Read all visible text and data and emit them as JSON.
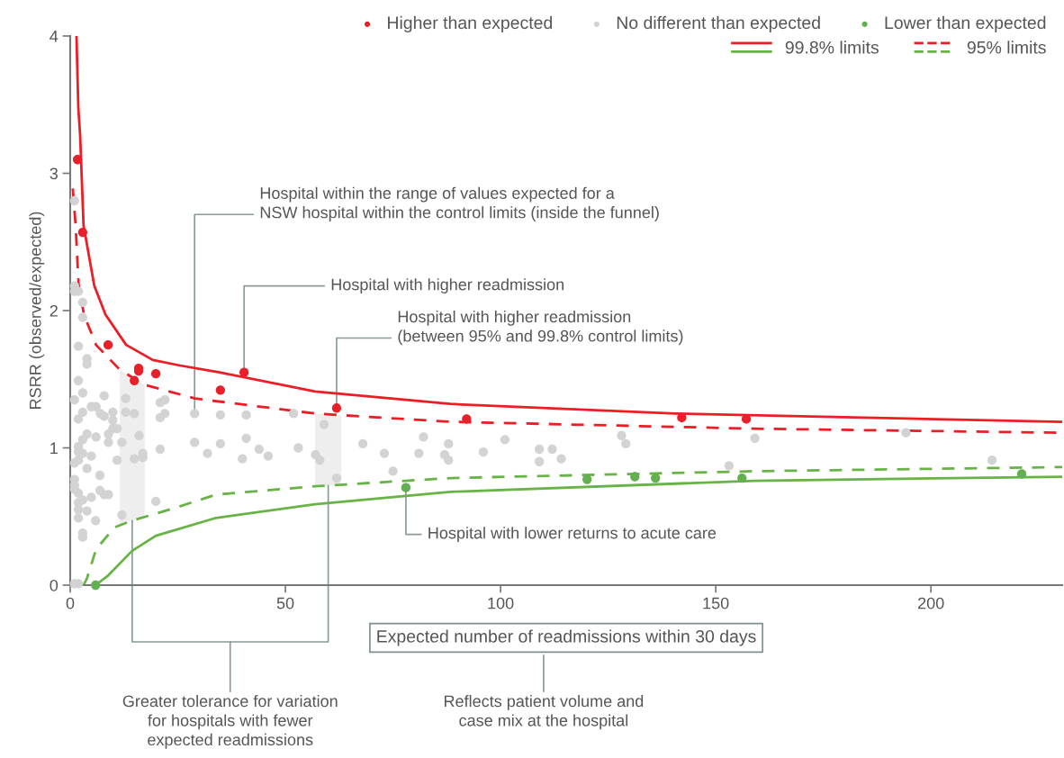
{
  "chart_data": {
    "type": "scatter",
    "xlabel": "Expected number of readmissions within 30 days",
    "ylabel": "RSRR (observed/expected)",
    "xlim": [
      0,
      230.5
    ],
    "xticks": [
      0,
      50,
      100,
      150,
      200
    ],
    "ylim": [
      0,
      4
    ],
    "yticks": [
      0,
      1,
      2,
      3,
      4
    ],
    "grid": false,
    "legend": "top right",
    "marker": "circle",
    "series": [
      {
        "name": "Higher than expected",
        "color": "#e8202a",
        "x": [
          1.7,
          2.9,
          8.8,
          14.9,
          15.9,
          15.9,
          19.9,
          34.9,
          40.4,
          61.9,
          92.1,
          142.1,
          157.1
        ],
        "values": [
          3.1,
          2.57,
          1.75,
          1.49,
          1.58,
          1.56,
          1.54,
          1.42,
          1.55,
          1.29,
          1.21,
          1.22,
          1.21
        ]
      },
      {
        "name": "No different than expected",
        "color": "#d3d3d3",
        "x": [
          1.0,
          1.0,
          1.0,
          1.9,
          2.9,
          2.9,
          1.9,
          3.9,
          3.9,
          1.9,
          2.9,
          1.0,
          7.9,
          12.9,
          1.9,
          2.9,
          4.9,
          6.0,
          7.0,
          7.9,
          9.9,
          9.9,
          12.9,
          14.9,
          20.9,
          22.0,
          20.9,
          22.0,
          9.9,
          10.9,
          3.9,
          2.9,
          6.0,
          8.9,
          8.9,
          12.0,
          16.0,
          1.9,
          1.9,
          2.9,
          1.0,
          1.9,
          4.9,
          3.9,
          10.9,
          14.9,
          16.9,
          16.9,
          20.9,
          6.9,
          1.0,
          1.0,
          1.0,
          1.9,
          2.9,
          1.9,
          1.9,
          1.9,
          4.9,
          6.9,
          7.9,
          8.9,
          3.9,
          5.9,
          12.0,
          19.9,
          2.9,
          2.9,
          1.0,
          1.9,
          28.9,
          28.9,
          31.9,
          34.9,
          40.9,
          51.9,
          59.0,
          34.9,
          40.9,
          40.0,
          43.9,
          46.0,
          53.0,
          57.0,
          58.0,
          61.9,
          68.0,
          73.0,
          75.0,
          81.0,
          82.1,
          87.0,
          87.9,
          87.9,
          96.0,
          101.0,
          109.0,
          112.0,
          109.0,
          114.1,
          128.1,
          129.1,
          153.1,
          159.1,
          194.2,
          214.2
        ],
        "values": [
          2.8,
          2.18,
          2.14,
          2.14,
          2.06,
          1.95,
          1.74,
          1.65,
          1.61,
          1.49,
          1.4,
          1.35,
          1.38,
          1.36,
          1.21,
          1.26,
          1.3,
          1.3,
          1.25,
          1.23,
          1.26,
          1.2,
          1.26,
          1.25,
          1.33,
          1.35,
          1.22,
          1.25,
          1.14,
          1.14,
          1.1,
          1.06,
          1.08,
          1.1,
          1.04,
          1.04,
          1.09,
          1.01,
          0.97,
          0.96,
          0.89,
          0.91,
          0.94,
          0.85,
          0.91,
          0.92,
          0.96,
          0.93,
          0.99,
          0.8,
          0.77,
          0.73,
          0.7,
          0.67,
          0.62,
          0.6,
          0.55,
          0.49,
          0.64,
          0.69,
          0.66,
          0.66,
          0.54,
          0.47,
          0.51,
          0.61,
          0.38,
          0.35,
          0.01,
          0.01,
          1.25,
          1.04,
          0.96,
          1.24,
          1.24,
          1.25,
          1.17,
          1.03,
          1.07,
          0.92,
          0.99,
          0.94,
          1.0,
          0.95,
          0.91,
          0.78,
          1.03,
          0.96,
          0.83,
          0.96,
          1.08,
          0.95,
          1.03,
          0.91,
          0.97,
          1.06,
          0.99,
          0.99,
          0.9,
          0.92,
          1.09,
          1.03,
          0.87,
          1.07,
          1.11,
          0.91
        ]
      },
      {
        "name": "Lower than expected",
        "color": "#62b04f",
        "x": [
          5.9,
          78.0,
          120.1,
          131.2,
          136.0,
          156.1,
          221.1
        ],
        "values": [
          0.0,
          0.71,
          0.77,
          0.79,
          0.78,
          0.78,
          0.81
        ]
      },
      {
        "name": "99.8% limits",
        "type": "line",
        "line_style": "solid",
        "marker": "none",
        "color": "#ee1c25",
        "x": [
          1.46,
          1.88,
          2.3,
          3.1,
          5.6,
          8.2,
          13,
          19.2,
          25.5,
          34.7,
          56.9,
          88.3,
          140.6,
          230.5
        ],
        "values": [
          4.0,
          3.48,
          3.28,
          2.62,
          2.18,
          1.97,
          1.75,
          1.64,
          1.6,
          1.55,
          1.41,
          1.32,
          1.25,
          1.19
        ]
      },
      {
        "type": "line",
        "line_style": "solid",
        "marker": "none",
        "color": "#67b346",
        "x": [
          5.9,
          8.8,
          14.4,
          19.9,
          33.9,
          56.9,
          88.3,
          158.8,
          230.5
        ],
        "values": [
          0.0,
          0.07,
          0.25,
          0.36,
          0.49,
          0.59,
          0.68,
          0.76,
          0.79
        ]
      },
      {
        "name": "95% limits",
        "type": "line",
        "line_style": "dashed",
        "marker": "none",
        "color": "#ee1c25",
        "x": [
          0.6,
          1.26,
          1.95,
          3.2,
          6.0,
          11.5,
          17.2,
          29.0,
          56.9,
          88.3,
          158.8,
          230.5
        ],
        "values": [
          2.89,
          2.62,
          2.19,
          1.97,
          1.75,
          1.57,
          1.46,
          1.36,
          1.25,
          1.19,
          1.14,
          1.11
        ]
      },
      {
        "type": "line",
        "line_style": "dashed",
        "marker": "none",
        "color": "#67b346",
        "x": [
          3.1,
          3.9,
          6.0,
          10.2,
          14.4,
          24.1,
          33.9,
          56.9,
          88.3,
          158.8,
          230.5
        ],
        "values": [
          0.0,
          0.05,
          0.26,
          0.42,
          0.47,
          0.56,
          0.66,
          0.72,
          0.78,
          0.83,
          0.86
        ]
      }
    ],
    "bands": [
      {
        "axis": "x",
        "from": 11.5,
        "to": 17.3,
        "color": "#eeeeee"
      },
      {
        "axis": "x",
        "from": 56.9,
        "to": 63.0,
        "color": "#eeeeee"
      }
    ],
    "annotations": [
      {
        "text": "Hospital within the range of values expected for a\nNSW hospital within the control limits (inside the funnel)",
        "x": 28.9,
        "y": 1.25
      },
      {
        "text": "Hospital with higher readmission",
        "x": 40.4,
        "y": 1.55
      },
      {
        "text": "Hospital with higher readmission\n(between 95% and 99.8% control limits)",
        "x": 61.9,
        "y": 1.29
      },
      {
        "text": "Hospital with lower returns to acute care",
        "x": 78.0,
        "y": 0.71
      },
      "Greater tolerance for variation\nfor hospitals with fewer\nexpected readmissions",
      "Reflects patient volume and\ncase mix at the hospital"
    ]
  }
}
